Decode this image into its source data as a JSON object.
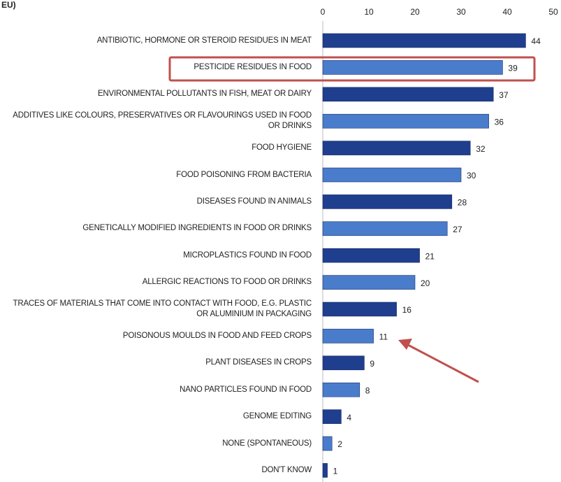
{
  "chart_data": {
    "type": "barh",
    "title": "EU)",
    "categories": [
      "ANTIBIOTIC, HORMONE OR STEROID RESIDUES IN MEAT",
      "PESTICIDE RESIDUES IN FOOD",
      "ENVIRONMENTAL POLLUTANTS IN FISH, MEAT OR DAIRY",
      "ADDITIVES LIKE COLOURS, PRESERVATIVES OR FLAVOURINGS USED IN FOOD OR DRINKS",
      "FOOD HYGIENE",
      "FOOD POISONING FROM BACTERIA",
      "DISEASES FOUND IN ANIMALS",
      "GENETICALLY MODIFIED INGREDIENTS IN FOOD OR DRINKS",
      "MICROPLASTICS FOUND IN FOOD",
      "ALLERGIC REACTIONS TO FOOD OR DRINKS",
      "TRACES OF MATERIALS THAT COME INTO CONTACT WITH FOOD, E.G. PLASTIC OR ALUMINIUM IN PACKAGING",
      "POISONOUS MOULDS IN FOOD AND FEED CROPS",
      "PLANT DISEASES IN CROPS",
      "NANO PARTICLES FOUND IN FOOD",
      "GENOME EDITING",
      "NONE (SPONTANEOUS)",
      "DON'T KNOW"
    ],
    "values": [
      44,
      39,
      37,
      36,
      32,
      30,
      28,
      27,
      21,
      20,
      16,
      11,
      9,
      8,
      4,
      2,
      1
    ],
    "colors": [
      "#1f3e8e",
      "#4a7ccc",
      "#1f3e8e",
      "#4a7ccc",
      "#1f3e8e",
      "#4a7ccc",
      "#1f3e8e",
      "#4a7ccc",
      "#1f3e8e",
      "#4a7ccc",
      "#1f3e8e",
      "#4a7ccc",
      "#1f3e8e",
      "#4a7ccc",
      "#1f3e8e",
      "#4a7ccc",
      "#1f3e8e"
    ],
    "xlim": [
      0,
      50
    ],
    "xticks": [
      0,
      10,
      20,
      30,
      40,
      50
    ],
    "grid": false
  }
}
